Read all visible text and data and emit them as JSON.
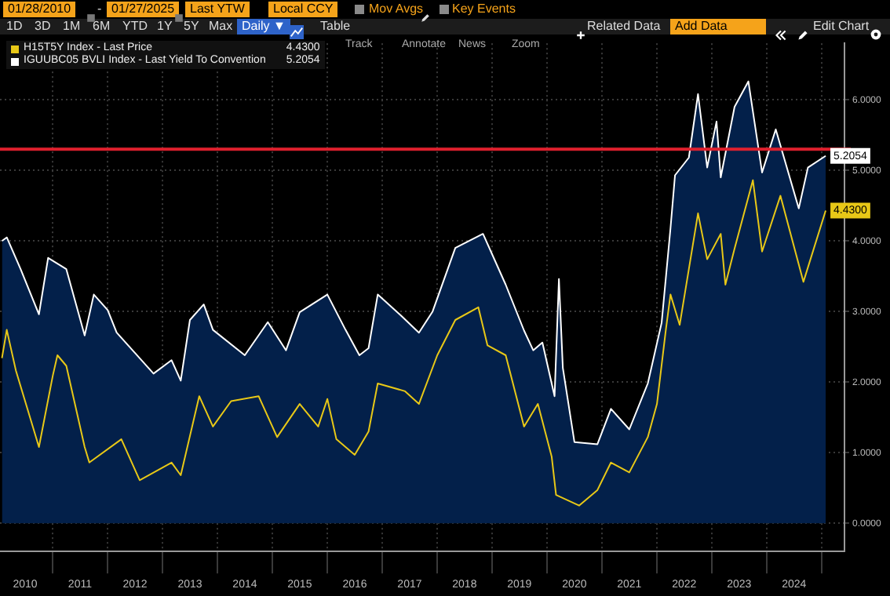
{
  "chart_data": {
    "type": "line",
    "annotations": [
      "01/28/2010",
      "-",
      "01/27/2025",
      "Last YTW",
      "Local CCY",
      "Mov Avgs",
      "Key Events",
      "1D",
      "3D",
      "1M",
      "6M",
      "YTD",
      "1Y",
      "5Y",
      "Max",
      "Daily ▼",
      "Table",
      "Related Data",
      "Add Data",
      "Edit Chart",
      "Track",
      "Annotate",
      "News",
      "Zoom"
    ],
    "series": [
      {
        "name": "IGUUBC05 BVLI Index - Last Yield To Convention",
        "type": "area",
        "color": "#ffffff",
        "x": [
          "2010-01-28",
          "2010-03",
          "2010-06",
          "2010-10",
          "2010-12",
          "2011-04",
          "2011-08",
          "2011-10",
          "2012-01",
          "2012-03",
          "2012-11",
          "2013-03",
          "2013-05",
          "2013-07",
          "2013-10",
          "2013-12",
          "2014-07",
          "2014-12",
          "2015-04",
          "2015-07",
          "2016-01",
          "2016-05",
          "2016-08",
          "2016-10",
          "2016-12",
          "2017-05",
          "2017-09",
          "2017-12",
          "2018-05",
          "2018-11",
          "2019-04",
          "2019-08",
          "2019-10",
          "2019-12",
          "2020-02-20",
          "2020-03-20",
          "2020-04-15",
          "2020-07",
          "2020-12",
          "2021-03",
          "2021-07",
          "2021-11",
          "2022-02",
          "2022-04",
          "2022-05",
          "2022-08",
          "2022-10",
          "2022-12",
          "2023-02",
          "2023-03",
          "2023-06",
          "2023-09",
          "2023-12",
          "2024-03",
          "2024-08",
          "2024-10",
          "2025-01-27"
        ],
        "values": [
          4.0,
          4.05,
          3.6,
          2.96,
          3.76,
          3.6,
          2.66,
          3.24,
          3.02,
          2.7,
          2.12,
          2.31,
          2.02,
          2.88,
          3.1,
          2.74,
          2.38,
          2.85,
          2.45,
          2.99,
          3.24,
          2.74,
          2.38,
          2.48,
          3.24,
          2.95,
          2.7,
          3.0,
          3.9,
          4.1,
          3.38,
          2.73,
          2.45,
          2.56,
          1.8,
          3.46,
          2.2,
          1.15,
          1.12,
          1.62,
          1.33,
          1.98,
          2.84,
          4.18,
          4.93,
          5.18,
          6.08,
          5.04,
          5.69,
          4.9,
          5.9,
          6.26,
          4.97,
          5.58,
          4.46,
          5.04,
          5.2054
        ],
        "value_labels": [
          null,
          null,
          null,
          null,
          null,
          null,
          null,
          null,
          null,
          null,
          null,
          null,
          null,
          null,
          null,
          null,
          null,
          null,
          null,
          null,
          null,
          null,
          null,
          null,
          null,
          null,
          null,
          null,
          null,
          null,
          null,
          null,
          null,
          null,
          null,
          null,
          null,
          null,
          null,
          null,
          null,
          null,
          null,
          null,
          null,
          null,
          null,
          null,
          null,
          null,
          null,
          null,
          null,
          null,
          null,
          null,
          "5.2054"
        ]
      },
      {
        "name": "H15T5Y Index - Last Price",
        "type": "line",
        "color": "#e8c817",
        "x": [
          "2010-01-28",
          "2010-03",
          "2010-05",
          "2010-10",
          "2011-01",
          "2011-02",
          "2011-04",
          "2011-08",
          "2011-09",
          "2012-04",
          "2012-08",
          "2013-03",
          "2013-05",
          "2013-09",
          "2013-12",
          "2014-04",
          "2014-10",
          "2015-02",
          "2015-07",
          "2015-11",
          "2016-01",
          "2016-03",
          "2016-07",
          "2016-10",
          "2016-12",
          "2017-06",
          "2017-09",
          "2018-01",
          "2018-05",
          "2018-10",
          "2018-12",
          "2019-04",
          "2019-08",
          "2019-11",
          "2020-02",
          "2020-03",
          "2020-08",
          "2020-12",
          "2021-03",
          "2021-07",
          "2021-11",
          "2022-01",
          "2022-03",
          "2022-04",
          "2022-06",
          "2022-10",
          "2022-12",
          "2023-03",
          "2023-04",
          "2023-06",
          "2023-10",
          "2023-12",
          "2024-04",
          "2024-09",
          "2025-01-27"
        ],
        "values": [
          2.34,
          2.74,
          2.16,
          1.08,
          2.09,
          2.38,
          2.23,
          1.08,
          0.86,
          1.19,
          0.61,
          0.86,
          0.68,
          1.8,
          1.37,
          1.73,
          1.8,
          1.22,
          1.69,
          1.37,
          1.76,
          1.19,
          0.97,
          1.3,
          1.98,
          1.87,
          1.69,
          2.38,
          2.88,
          3.06,
          2.52,
          2.38,
          1.37,
          1.69,
          0.94,
          0.4,
          0.25,
          0.47,
          0.86,
          0.72,
          1.22,
          1.69,
          2.74,
          3.24,
          2.81,
          4.39,
          3.74,
          4.1,
          3.38,
          3.89,
          4.86,
          3.85,
          4.64,
          3.42,
          4.43
        ],
        "value_labels": [
          null,
          null,
          null,
          null,
          null,
          null,
          null,
          null,
          null,
          null,
          null,
          null,
          null,
          null,
          null,
          null,
          null,
          null,
          null,
          null,
          null,
          null,
          null,
          null,
          null,
          null,
          null,
          null,
          null,
          null,
          null,
          null,
          null,
          null,
          null,
          null,
          null,
          null,
          null,
          null,
          null,
          null,
          null,
          null,
          null,
          null,
          null,
          null,
          null,
          null,
          null,
          null,
          null,
          null,
          "4.4300"
        ]
      }
    ],
    "ref_lines": [
      {
        "axis": "y",
        "value": 5.3,
        "color": "#e0202e"
      }
    ],
    "xlim": [
      "2010-01-15",
      "2025-06-01"
    ],
    "xticks": [
      {
        "value": "2010-07-01",
        "label": "2010"
      },
      {
        "value": "2011-01-01",
        "label": null
      },
      {
        "value": "2011-07-01",
        "label": "2011"
      },
      {
        "value": "2012-01-01",
        "label": null
      },
      {
        "value": "2012-07-01",
        "label": "2012"
      },
      {
        "value": "2013-01-01",
        "label": null
      },
      {
        "value": "2013-07-01",
        "label": "2013"
      },
      {
        "value": "2014-01-01",
        "label": null
      },
      {
        "value": "2014-07-01",
        "label": "2014"
      },
      {
        "value": "2015-01-01",
        "label": null
      },
      {
        "value": "2015-07-01",
        "label": "2015"
      },
      {
        "value": "2016-01-01",
        "label": null
      },
      {
        "value": "2016-07-01",
        "label": "2016"
      },
      {
        "value": "2017-01-01",
        "label": null
      },
      {
        "value": "2017-07-01",
        "label": "2017"
      },
      {
        "value": "2018-01-01",
        "label": null
      },
      {
        "value": "2018-07-01",
        "label": "2018"
      },
      {
        "value": "2019-01-01",
        "label": null
      },
      {
        "value": "2019-07-01",
        "label": "2019"
      },
      {
        "value": "2020-01-01",
        "label": null
      },
      {
        "value": "2020-07-01",
        "label": "2020"
      },
      {
        "value": "2021-01-01",
        "label": null
      },
      {
        "value": "2021-07-01",
        "label": "2021"
      },
      {
        "value": "2022-01-01",
        "label": null
      },
      {
        "value": "2022-07-01",
        "label": "2022"
      },
      {
        "value": "2023-01-01",
        "label": null
      },
      {
        "value": "2023-07-01",
        "label": "2023"
      },
      {
        "value": "2024-01-01",
        "label": null
      },
      {
        "value": "2024-07-01",
        "label": "2024"
      },
      {
        "value": "2025-01-01",
        "label": null
      }
    ],
    "ylim": [
      -0.4,
      6.8
    ],
    "yticks": [
      {
        "value": 0,
        "label": "0.0000"
      },
      {
        "value": 1,
        "label": "1.0000"
      },
      {
        "value": 2,
        "label": "2.0000"
      },
      {
        "value": 3,
        "label": "3.0000"
      },
      {
        "value": 4,
        "label": "4.0000"
      },
      {
        "value": 5,
        "label": "5.0000"
      },
      {
        "value": 6,
        "label": "6.0000"
      }
    ],
    "grid": true,
    "legend": "top left",
    "marker": "none",
    "line_style": "solid"
  }
}
